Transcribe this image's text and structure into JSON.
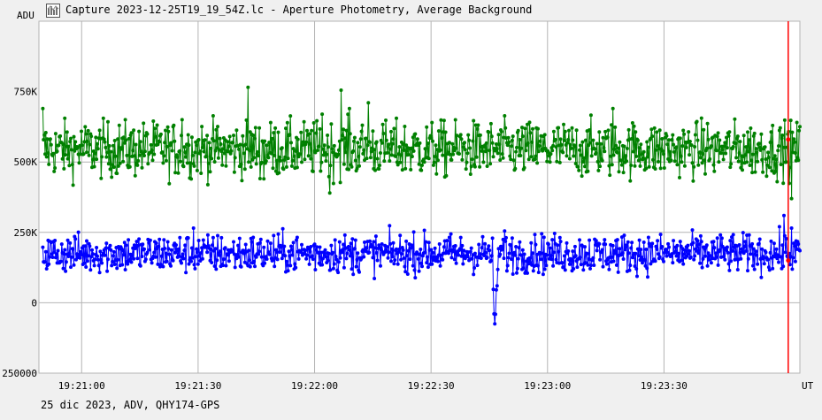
{
  "window": {
    "title": "Capture 2023-12-25T19_19_54Z.lc - Aperture Photometry, Average Background",
    "app_icon": "lightcurve-app-icon"
  },
  "footer": {
    "info": "25 dic 2023, ADV, QHY174-GPS"
  },
  "colors": {
    "background": "#f0f0f0",
    "grid": "#b4b4b4",
    "series_1": "#008000",
    "series_2": "#0000ff",
    "cursor": "#ff0000"
  },
  "chart_data": {
    "type": "line",
    "title": "Capture 2023-12-25T19_19_54Z.lc - Aperture Photometry, Average Background",
    "ylabel": "ADU",
    "xlabel": "UT",
    "ylim": [
      -250000,
      1000000
    ],
    "y_ticks": [
      {
        "value": 750000,
        "label": "750K"
      },
      {
        "value": 500000,
        "label": "500K"
      },
      {
        "value": 250000,
        "label": "250K"
      },
      {
        "value": 0,
        "label": "0"
      },
      {
        "value": -250000,
        "label": "250000"
      }
    ],
    "xlim": [
      "19:20:49",
      "19:24:05"
    ],
    "x_ticks": [
      "19:21:00",
      "19:21:30",
      "19:22:00",
      "19:22:30",
      "19:23:00",
      "19:23:30"
    ],
    "grid": true,
    "series": [
      {
        "color": "#008000",
        "mean": 545000,
        "noise": 50000,
        "spikes": [
          {
            "x": "19:20:50",
            "y": 690000
          },
          {
            "x": "19:21:26",
            "y": 650000
          },
          {
            "x": "19:21:43",
            "y": 765000
          },
          {
            "x": "19:21:47",
            "y": 440000
          },
          {
            "x": "19:22:02",
            "y": 670000
          },
          {
            "x": "19:22:04",
            "y": 390000
          },
          {
            "x": "19:22:07",
            "y": 755000
          },
          {
            "x": "19:22:09",
            "y": 690000
          },
          {
            "x": "19:22:14",
            "y": 710000
          },
          {
            "x": "19:23:17",
            "y": 690000
          },
          {
            "x": "19:24:03",
            "y": 370000
          }
        ]
      },
      {
        "color": "#0000ff",
        "mean": 175000,
        "noise": 35000,
        "dip": {
          "start": "19:22:46",
          "end": "19:22:47",
          "min": -75000
        },
        "spikes": [
          {
            "x": "19:21:29",
            "y": 265000
          },
          {
            "x": "19:22:49",
            "y": 255000
          },
          {
            "x": "19:24:01",
            "y": 310000
          },
          {
            "x": "19:24:03",
            "y": 265000
          }
        ]
      }
    ],
    "cursor": {
      "x": "19:24:02",
      "color": "#ff0000"
    }
  }
}
